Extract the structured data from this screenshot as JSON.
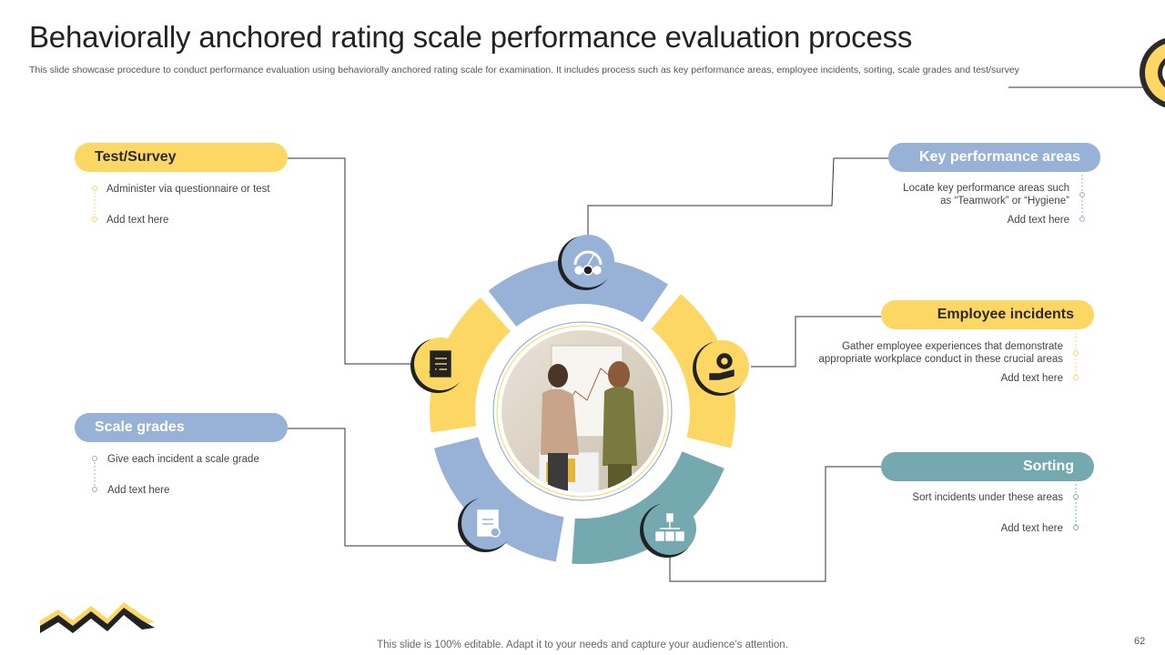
{
  "title": "Behaviorally anchored rating scale performance evaluation process",
  "subtitle": "This slide showcase procedure to conduct performance evaluation using behaviorally anchored rating scale for examination. It includes process such as key performance areas, employee incidents, sorting, scale grades and test/survey",
  "colors": {
    "yellow": "#FDD764",
    "blue": "#98B1D6",
    "teal": "#75A9B0",
    "dark": "#222222"
  },
  "steps": [
    {
      "label": "Key performance areas",
      "icon": "gauge-icon",
      "color": "blue",
      "bullets": [
        "Locate key performance areas such",
        "as “Teamwork” or “Hygiene”"
      ],
      "extra": "Add text here"
    },
    {
      "label": "Employee incidents",
      "icon": "gear-hand-icon",
      "color": "yellow",
      "bullets": [
        "Gather employee experiences that demonstrate",
        "appropriate workplace conduct in these crucial areas"
      ],
      "extra": "Add text here"
    },
    {
      "label": "Sorting",
      "icon": "sorting-icon",
      "color": "teal",
      "bullets": [
        "Sort incidents under these areas"
      ],
      "extra": "Add text here"
    },
    {
      "label": "Scale grades",
      "icon": "grade-sheet-icon",
      "color": "blue",
      "bullets": [
        "Give each incident a scale grade"
      ],
      "extra": "Add text here"
    },
    {
      "label": "Test/Survey",
      "icon": "clipboard-icon",
      "color": "yellow",
      "bullets": [
        "Administer via questionnaire or test"
      ],
      "extra": "Add text here"
    }
  ],
  "center_image": "meeting-photo",
  "footer": "This slide is 100% editable. Adapt it to your needs and capture your audience’s attention.",
  "page_number": "62"
}
